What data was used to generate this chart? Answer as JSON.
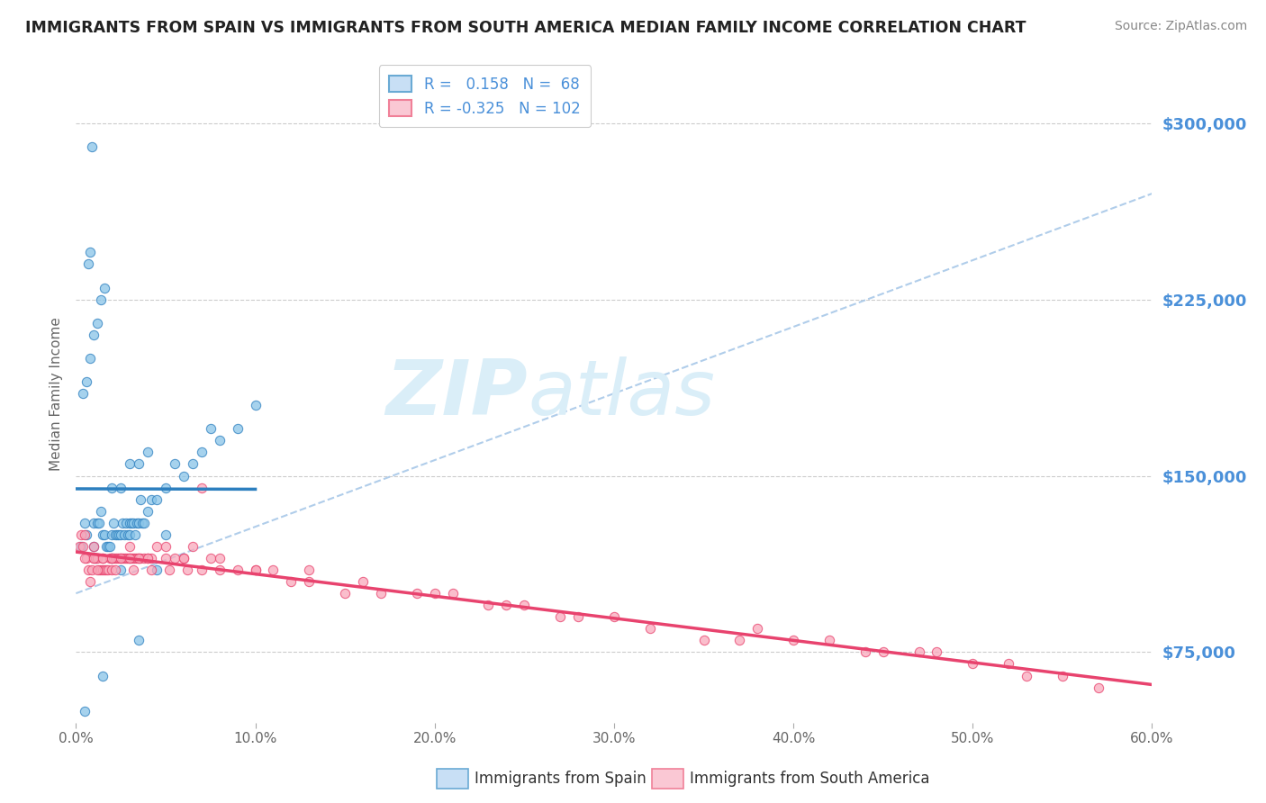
{
  "title": "IMMIGRANTS FROM SPAIN VS IMMIGRANTS FROM SOUTH AMERICA MEDIAN FAMILY INCOME CORRELATION CHART",
  "source": "Source: ZipAtlas.com",
  "ylabel": "Median Family Income",
  "yticks": [
    75000,
    150000,
    225000,
    300000
  ],
  "ytick_labels": [
    "$75,000",
    "$150,000",
    "$225,000",
    "$300,000"
  ],
  "xlim": [
    0.0,
    60.0
  ],
  "ylim": [
    45000,
    325000
  ],
  "spain_R": 0.158,
  "spain_N": 68,
  "south_america_R": -0.325,
  "south_america_N": 102,
  "spain_scatter_color": "#89c4e8",
  "sa_scatter_color": "#f9a8bb",
  "regression_spain_color": "#2c7fbf",
  "regression_sa_color": "#e8436e",
  "dashed_line_color": "#a8c8e8",
  "background_color": "#ffffff",
  "grid_color": "#cccccc",
  "title_color": "#222222",
  "axis_color": "#4a90d9",
  "watermark_color": "#daeef8",
  "legend_fill_spain": "#c8dff5",
  "legend_fill_sa": "#fac8d4",
  "legend_edge_spain": "#6aaad4",
  "legend_edge_sa": "#f08098",
  "spain_scatter_x": [
    0.3,
    0.5,
    0.6,
    0.7,
    0.8,
    0.9,
    1.0,
    1.0,
    1.1,
    1.2,
    1.3,
    1.4,
    1.5,
    1.6,
    1.7,
    1.8,
    1.9,
    2.0,
    2.0,
    2.1,
    2.2,
    2.3,
    2.4,
    2.5,
    2.6,
    2.7,
    2.8,
    2.9,
    3.0,
    3.0,
    3.1,
    3.2,
    3.3,
    3.4,
    3.5,
    3.6,
    3.7,
    3.8,
    4.0,
    4.2,
    4.5,
    5.0,
    5.5,
    6.0,
    6.5,
    7.0,
    8.0,
    9.0,
    0.4,
    0.6,
    0.8,
    1.0,
    1.2,
    1.4,
    1.6,
    2.0,
    2.5,
    3.0,
    3.5,
    4.0,
    0.5,
    1.5,
    2.5,
    3.5,
    4.5,
    5.0,
    7.5,
    10.0
  ],
  "spain_scatter_y": [
    120000,
    130000,
    125000,
    240000,
    245000,
    290000,
    130000,
    120000,
    115000,
    130000,
    130000,
    135000,
    125000,
    125000,
    120000,
    120000,
    120000,
    125000,
    115000,
    130000,
    125000,
    125000,
    125000,
    125000,
    130000,
    125000,
    130000,
    125000,
    130000,
    125000,
    130000,
    130000,
    125000,
    130000,
    130000,
    140000,
    130000,
    130000,
    135000,
    140000,
    140000,
    145000,
    155000,
    150000,
    155000,
    160000,
    165000,
    170000,
    185000,
    190000,
    200000,
    210000,
    215000,
    225000,
    230000,
    145000,
    145000,
    155000,
    155000,
    160000,
    50000,
    65000,
    110000,
    80000,
    110000,
    125000,
    170000,
    180000
  ],
  "sa_scatter_x": [
    0.2,
    0.3,
    0.4,
    0.5,
    0.6,
    0.7,
    0.8,
    0.9,
    1.0,
    1.0,
    1.1,
    1.2,
    1.3,
    1.4,
    1.5,
    1.5,
    1.6,
    1.7,
    1.8,
    1.9,
    2.0,
    2.0,
    2.1,
    2.2,
    2.3,
    2.4,
    2.5,
    2.6,
    2.7,
    2.8,
    2.9,
    3.0,
    3.0,
    3.1,
    3.2,
    3.3,
    3.4,
    3.5,
    3.6,
    3.8,
    4.0,
    4.2,
    4.5,
    5.0,
    5.5,
    6.0,
    6.5,
    7.0,
    7.5,
    8.0,
    9.0,
    10.0,
    11.0,
    12.0,
    13.0,
    15.0,
    17.0,
    19.0,
    21.0,
    23.0,
    25.0,
    28.0,
    30.0,
    35.0,
    38.0,
    42.0,
    45.0,
    48.0,
    52.0,
    55.0,
    0.5,
    1.0,
    1.5,
    2.0,
    2.5,
    3.0,
    3.5,
    4.0,
    5.0,
    6.0,
    7.0,
    8.0,
    10.0,
    13.0,
    16.0,
    20.0,
    24.0,
    27.0,
    32.0,
    37.0,
    40.0,
    44.0,
    47.0,
    50.0,
    53.0,
    57.0,
    1.2,
    2.2,
    3.2,
    4.2,
    5.2,
    6.2
  ],
  "sa_scatter_y": [
    120000,
    125000,
    120000,
    125000,
    115000,
    110000,
    105000,
    110000,
    120000,
    115000,
    115000,
    115000,
    110000,
    110000,
    115000,
    110000,
    110000,
    110000,
    110000,
    115000,
    115000,
    110000,
    115000,
    115000,
    115000,
    115000,
    115000,
    115000,
    115000,
    115000,
    115000,
    120000,
    115000,
    115000,
    115000,
    115000,
    115000,
    115000,
    115000,
    115000,
    115000,
    115000,
    120000,
    120000,
    115000,
    115000,
    120000,
    145000,
    115000,
    115000,
    110000,
    110000,
    110000,
    105000,
    110000,
    100000,
    100000,
    100000,
    100000,
    95000,
    95000,
    90000,
    90000,
    80000,
    85000,
    80000,
    75000,
    75000,
    70000,
    65000,
    115000,
    115000,
    115000,
    115000,
    115000,
    115000,
    115000,
    115000,
    115000,
    115000,
    110000,
    110000,
    110000,
    105000,
    105000,
    100000,
    95000,
    90000,
    85000,
    80000,
    80000,
    75000,
    75000,
    70000,
    65000,
    60000,
    110000,
    110000,
    110000,
    110000,
    110000,
    110000
  ]
}
